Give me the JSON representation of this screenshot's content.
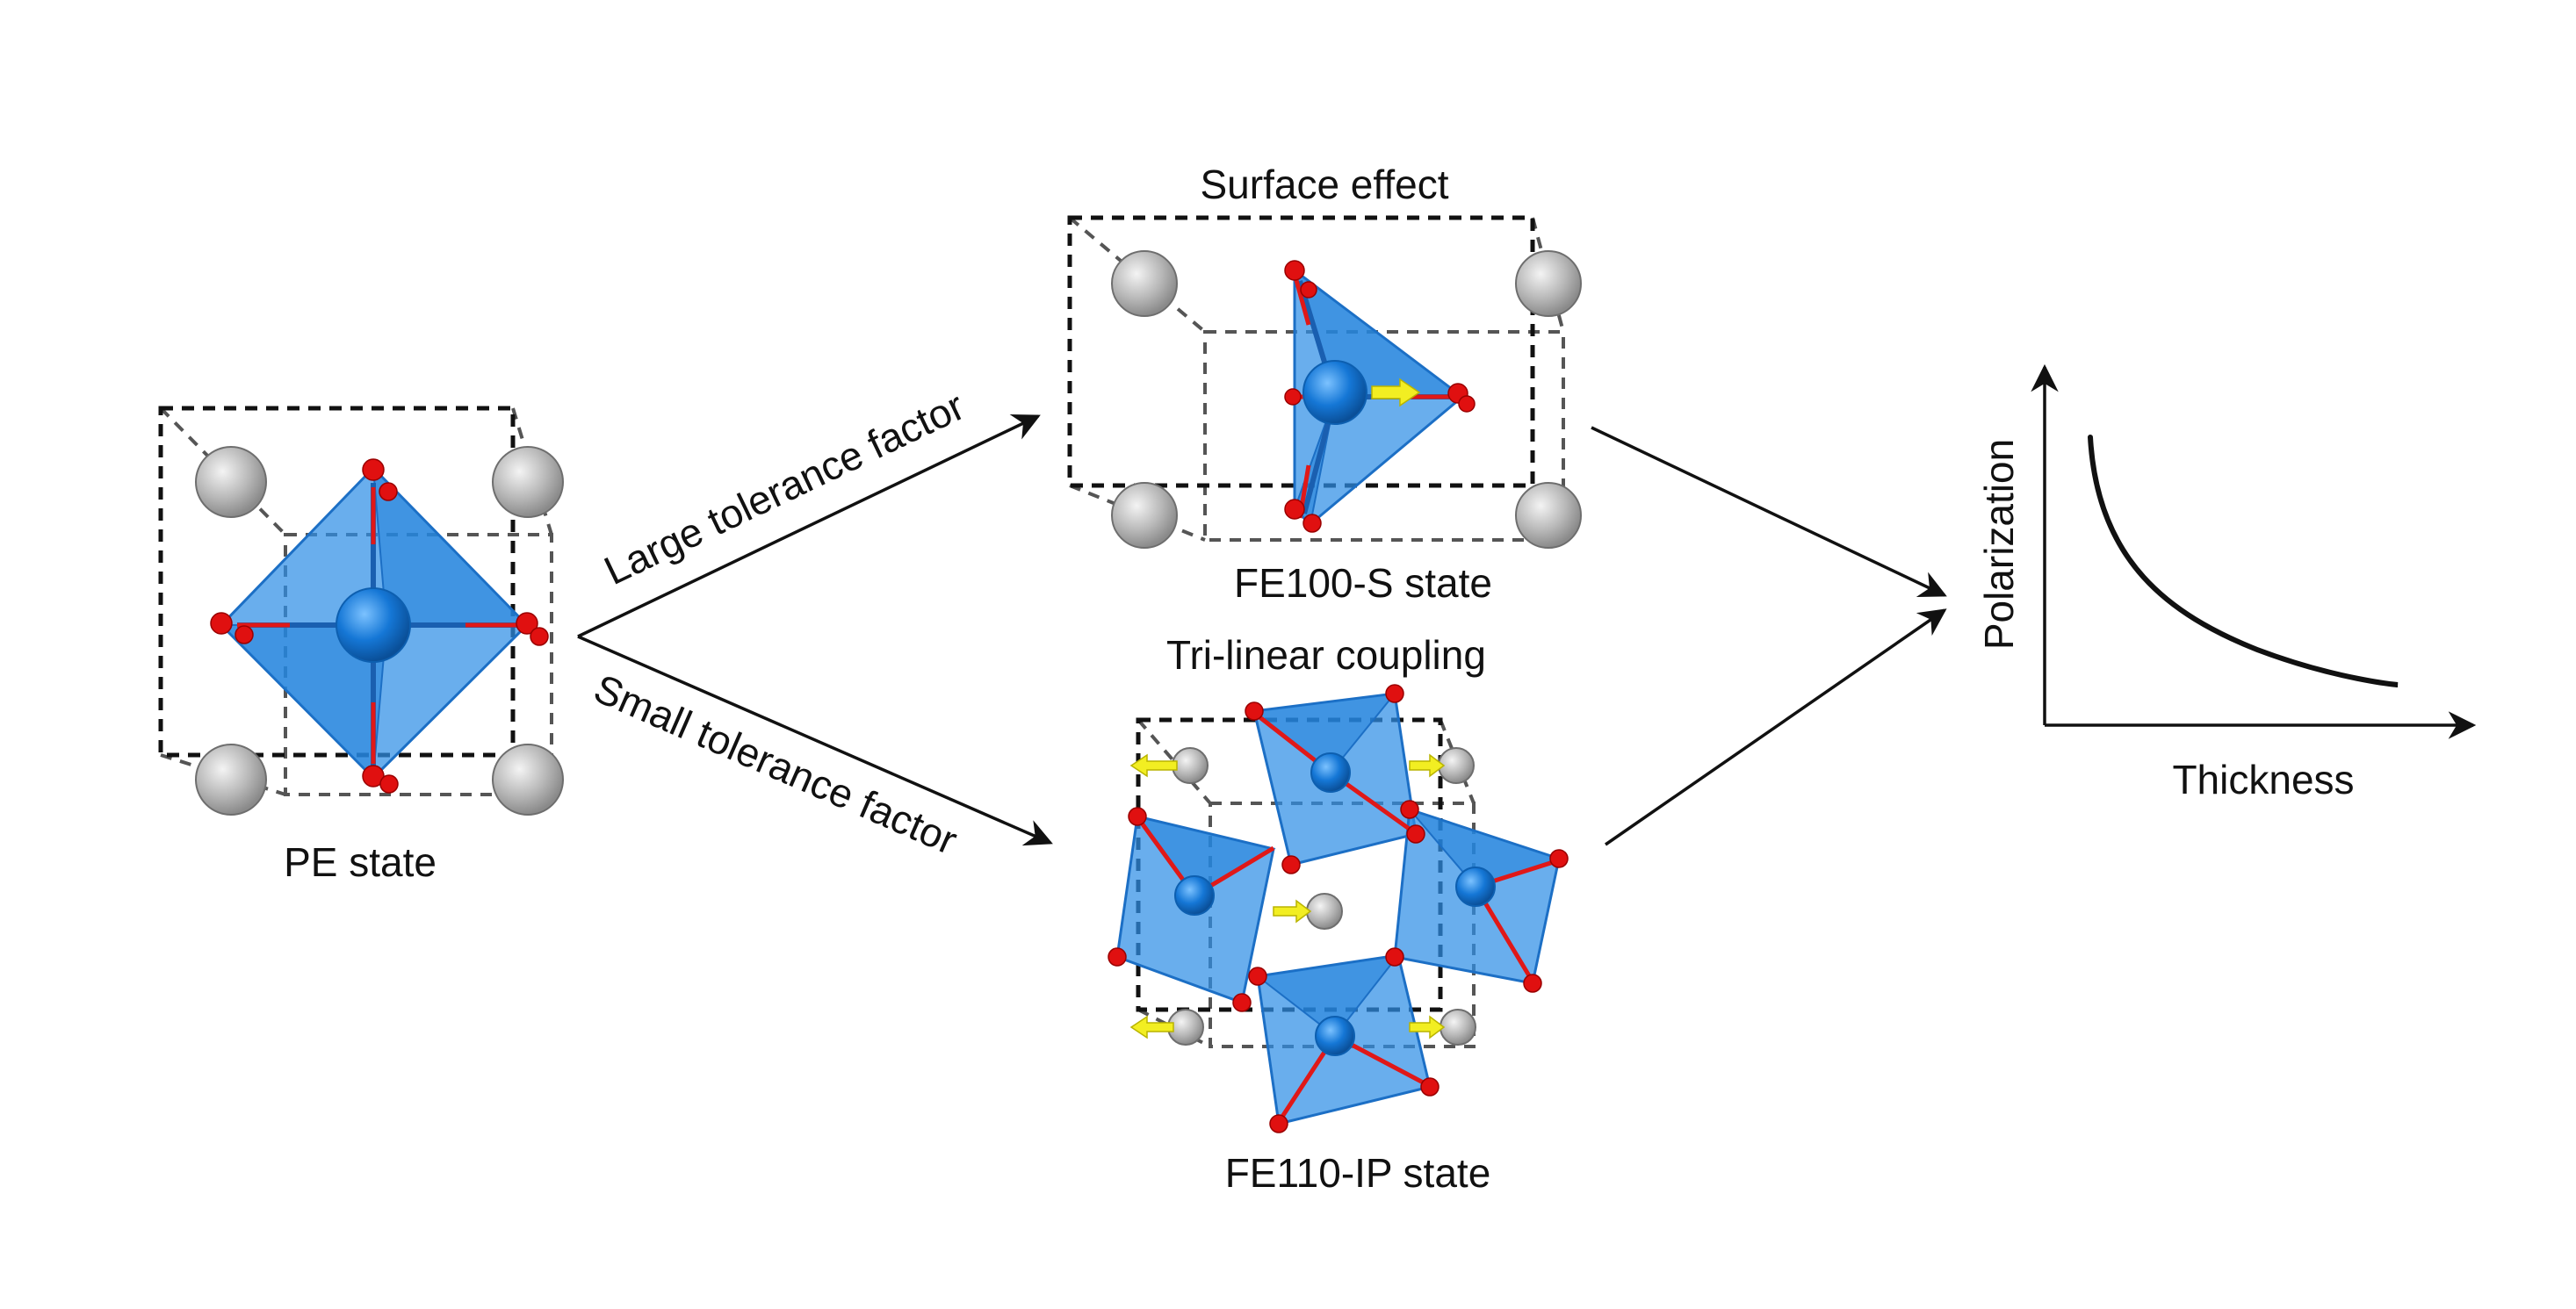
{
  "diagram": {
    "labels": {
      "pe_state": "PE state",
      "large_tolerance": "Large tolerance factor",
      "small_tolerance": "Small tolerance factor",
      "surface_effect": "Surface effect",
      "fe100_state": "FE100-S state",
      "trilinear": "Tri-linear coupling",
      "fe110_state": "FE110-IP state",
      "y_axis": "Polarization",
      "x_axis": "Thickness"
    },
    "colors": {
      "octahedron": "#2f8fe6",
      "oxygen": "#e01010",
      "a_site_cation": "#b3b3b3",
      "b_site_cation": "#1577d6",
      "displacement_arrow": "#f2ee22"
    }
  }
}
